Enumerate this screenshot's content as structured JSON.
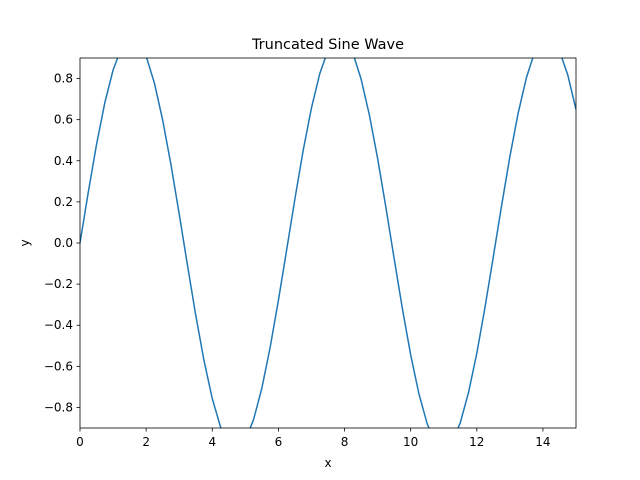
{
  "chart_data": {
    "type": "line",
    "title": "Truncated Sine Wave",
    "xlabel": "x",
    "ylabel": "y",
    "xlim": [
      0,
      15
    ],
    "ylim": [
      -0.9,
      0.9
    ],
    "grid": false,
    "legend": "none",
    "x_ticks": [
      0,
      2,
      4,
      6,
      8,
      10,
      12,
      14
    ],
    "x_tick_labels": [
      "0",
      "2",
      "4",
      "6",
      "8",
      "10",
      "12",
      "14"
    ],
    "y_ticks": [
      -0.8,
      -0.6,
      -0.4,
      -0.2,
      0.0,
      0.2,
      0.4,
      0.6,
      0.8
    ],
    "y_tick_labels": [
      "−0.8",
      "−0.6",
      "−0.4",
      "−0.2",
      "0.0",
      "0.2",
      "0.4",
      "0.6",
      "0.8"
    ],
    "series": [
      {
        "color": "#1f77b4",
        "x": [
          0,
          0.25,
          0.5,
          0.75,
          1.0,
          1.25,
          1.5,
          1.75,
          2.0,
          2.25,
          2.5,
          2.75,
          3.0,
          3.25,
          3.5,
          3.75,
          4.0,
          4.25,
          4.5,
          4.75,
          5.0,
          5.25,
          5.5,
          5.75,
          6.0,
          6.25,
          6.5,
          6.75,
          7.0,
          7.25,
          7.5,
          7.75,
          8.0,
          8.25,
          8.5,
          8.75,
          9.0,
          9.25,
          9.5,
          9.75,
          10.0,
          10.25,
          10.5,
          10.75,
          11.0,
          11.25,
          11.5,
          11.75,
          12.0,
          12.25,
          12.5,
          12.75,
          13.0,
          13.25,
          13.5,
          13.75,
          14.0,
          14.25,
          14.5,
          14.75,
          15.0
        ],
        "y": [
          0.0,
          0.247,
          0.479,
          0.682,
          0.841,
          0.949,
          0.997,
          0.984,
          0.909,
          0.778,
          0.598,
          0.382,
          0.141,
          -0.108,
          -0.351,
          -0.572,
          -0.757,
          -0.895,
          -0.978,
          -0.999,
          -0.959,
          -0.859,
          -0.706,
          -0.508,
          -0.279,
          -0.033,
          0.215,
          0.451,
          0.657,
          0.823,
          0.938,
          0.994,
          0.989,
          0.925,
          0.798,
          0.624,
          0.412,
          0.174,
          -0.075,
          -0.32,
          -0.544,
          -0.734,
          -0.88,
          -0.971,
          -1.0,
          -0.968,
          -0.875,
          -0.727,
          -0.537,
          -0.311,
          -0.066,
          0.182,
          0.42,
          0.631,
          0.804,
          0.929,
          0.991,
          0.993,
          0.935,
          0.818,
          0.65
        ]
      }
    ]
  }
}
